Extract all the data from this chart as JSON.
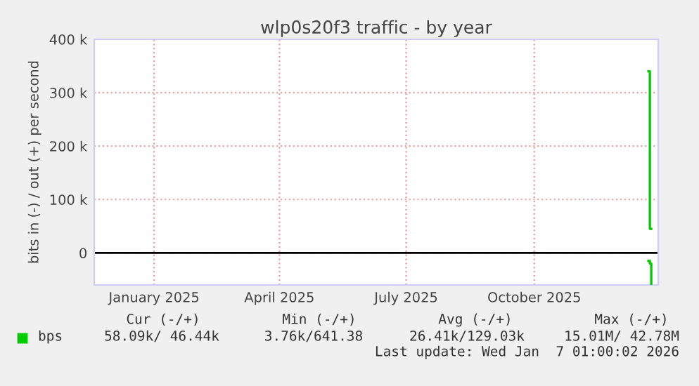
{
  "chart_data": {
    "type": "line",
    "title": "wlp0s20f3 traffic - by year",
    "ylabel": "bits in (-) / out (+) per second",
    "series": [
      {
        "name": "bps",
        "color": "#00cc00",
        "x": [
          "2026-01-05",
          "2026-01-06",
          "2026-01-07"
        ],
        "values": [
          340000,
          45000,
          45000
        ]
      },
      {
        "color": "#00cc00",
        "x": [
          "2026-01-05",
          "2026-01-06",
          "2026-01-07"
        ],
        "values": [
          -15000,
          -20000,
          -58000
        ]
      }
    ],
    "xlim": [
      "2024-12-03",
      "2026-01-12"
    ],
    "xticks": [
      {
        "value": "2025-01-15",
        "label": "January 2025"
      },
      {
        "value": "2025-04-15",
        "label": "April 2025"
      },
      {
        "value": "2025-07-15",
        "label": "July 2025"
      },
      {
        "value": "2025-10-15",
        "label": "October 2025"
      }
    ],
    "ylim": [
      -60000,
      400000
    ],
    "yticks": [
      {
        "value": 0,
        "label": "0"
      },
      {
        "value": 100000,
        "label": "100 k"
      },
      {
        "value": 200000,
        "label": "200 k"
      },
      {
        "value": 300000,
        "label": "300 k"
      },
      {
        "value": 400000,
        "label": "400 k"
      }
    ],
    "ref_lines": [
      {
        "axis": "y",
        "value": 0,
        "color": "#000000"
      }
    ],
    "grid": true,
    "legend": "bottom left",
    "marker": "none",
    "line_style": "solid",
    "annotations": [
      "Cur (-/+)",
      "Min (-/+)",
      "Avg (-/+)",
      "Max (-/+)",
      "58.09k/ 46.44k",
      "3.76k/641.38",
      "26.41k/129.03k",
      "15.01M/ 42.78M",
      "Last update: Wed Jan  7 01:00:02 2026"
    ]
  }
}
